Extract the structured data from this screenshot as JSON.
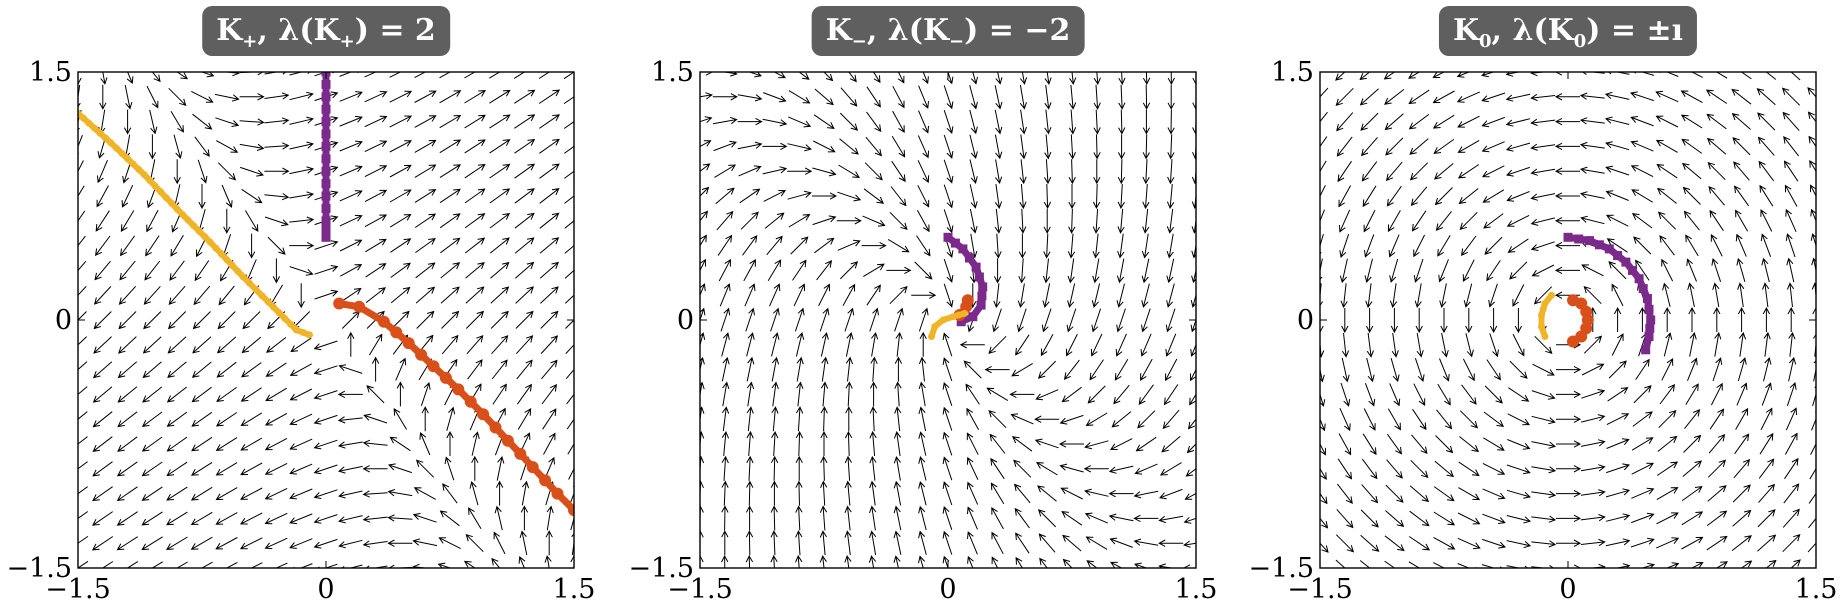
{
  "chart_data": [
    {
      "type": "scatter",
      "plot_kind": "vector field with trajectories (quiver)",
      "title": "K+, λ(K+) = 2",
      "title_parts": {
        "sym": "K",
        "sub": "+",
        "mid": ", λ(",
        "sym2": "K",
        "sub2": "+",
        "tail": ") = 2"
      },
      "xlim": [
        -1.5,
        1.5
      ],
      "ylim": [
        -1.5,
        1.5
      ],
      "x_ticks": [
        "−1.5",
        "0",
        "1.5"
      ],
      "y_ticks": [
        "−1.5",
        "0",
        "1.5"
      ],
      "grid": false,
      "field_matrix": [
        [
          1.5,
          1.5
        ],
        [
          1.5,
          0.5
        ]
      ],
      "series": [
        {
          "color": "#f0b429",
          "marker": "small-dot",
          "points": [
            [
              -1.5,
              1.25
            ],
            [
              -1.3,
              1.07
            ],
            [
              -1.1,
              0.88
            ],
            [
              -0.9,
              0.67
            ],
            [
              -0.7,
              0.47
            ],
            [
              -0.5,
              0.26
            ],
            [
              -0.35,
              0.11
            ],
            [
              -0.25,
              0.01
            ],
            [
              -0.18,
              -0.06
            ],
            [
              -0.1,
              -0.09
            ]
          ]
        },
        {
          "color": "#d94f1a",
          "marker": "large-dot",
          "points": [
            [
              0.08,
              0.1
            ],
            [
              0.2,
              0.08
            ],
            [
              0.35,
              -0.01
            ],
            [
              0.5,
              -0.14
            ],
            [
              0.65,
              -0.28
            ],
            [
              0.8,
              -0.42
            ],
            [
              0.95,
              -0.57
            ],
            [
              1.1,
              -0.73
            ],
            [
              1.25,
              -0.89
            ],
            [
              1.4,
              -1.05
            ],
            [
              1.5,
              -1.15
            ]
          ]
        },
        {
          "color": "#7b2a8c",
          "marker": "square",
          "points": [
            [
              0,
              1.5
            ],
            [
              0,
              1.35
            ],
            [
              0,
              1.2
            ],
            [
              0,
              1.05
            ],
            [
              0,
              0.9
            ],
            [
              0,
              0.75
            ],
            [
              0,
              0.6
            ],
            [
              0,
              0.5
            ]
          ]
        }
      ]
    },
    {
      "type": "scatter",
      "plot_kind": "vector field with trajectories (quiver)",
      "title": "K−, λ(K−) = −2",
      "title_parts": {
        "sym": "K",
        "sub": "−",
        "mid": ", λ(",
        "sym2": "K",
        "sub2": "−",
        "tail": ") = −2"
      },
      "xlim": [
        -1.5,
        1.5
      ],
      "ylim": [
        -1.5,
        1.5
      ],
      "x_ticks": [
        "−1.5",
        "0",
        "1.5"
      ],
      "y_ticks": [
        "−1.5",
        "0",
        "1.5"
      ],
      "grid": false,
      "field_matrix": [
        [
          -0.5,
          0.5
        ],
        [
          -1.5,
          -1.5
        ]
      ],
      "series": [
        {
          "color": "#7b2a8c",
          "marker": "square",
          "points": [
            [
              0,
              0.5
            ],
            [
              0.09,
              0.43
            ],
            [
              0.17,
              0.32
            ],
            [
              0.21,
              0.2
            ],
            [
              0.2,
              0.09
            ],
            [
              0.15,
              0.02
            ],
            [
              0.08,
              -0.01
            ]
          ]
        },
        {
          "color": "#d94f1a",
          "marker": "large-dot",
          "points": [
            [
              0.07,
              0.03
            ],
            [
              0.11,
              0.08
            ],
            [
              0.12,
              0.12
            ]
          ]
        },
        {
          "color": "#f0b429",
          "marker": "small-dot",
          "points": [
            [
              -0.1,
              -0.1
            ],
            [
              -0.08,
              -0.04
            ],
            [
              -0.03,
              0.0
            ],
            [
              0.03,
              0.02
            ],
            [
              0.1,
              0.04
            ]
          ]
        }
      ]
    },
    {
      "type": "scatter",
      "plot_kind": "vector field with trajectories (quiver)",
      "title": "K0, λ(K0) = ±ı",
      "title_parts": {
        "sym": "K",
        "sub": "0",
        "mid": ", λ(",
        "sym2": "K",
        "sub2": "0",
        "tail": ") = ±ı"
      },
      "xlim": [
        -1.5,
        1.5
      ],
      "ylim": [
        -1.5,
        1.5
      ],
      "x_ticks": [
        "−1.5",
        "0",
        "1.5"
      ],
      "y_ticks": [
        "−1.5",
        "0",
        "1.5"
      ],
      "grid": false,
      "field_matrix": [
        [
          0,
          -1
        ],
        [
          1,
          0
        ]
      ],
      "series": [
        {
          "color": "#7b2a8c",
          "marker": "square",
          "points": [
            [
              0,
              0.5
            ],
            [
              0.13,
              0.48
            ],
            [
              0.25,
              0.43
            ],
            [
              0.35,
              0.35
            ],
            [
              0.43,
              0.25
            ],
            [
              0.48,
              0.13
            ],
            [
              0.5,
              0.0
            ],
            [
              0.49,
              -0.1
            ],
            [
              0.47,
              -0.18
            ]
          ]
        },
        {
          "color": "#d94f1a",
          "marker": "large-dot",
          "points": [
            [
              0.03,
              0.12
            ],
            [
              0.08,
              0.1
            ],
            [
              0.11,
              0.05
            ],
            [
              0.12,
              0.0
            ],
            [
              0.11,
              -0.05
            ],
            [
              0.08,
              -0.1
            ],
            [
              0.03,
              -0.13
            ]
          ]
        },
        {
          "color": "#f0b429",
          "marker": "small-dot",
          "points": [
            [
              -0.1,
              0.15
            ],
            [
              -0.14,
              0.1
            ],
            [
              -0.16,
              0.03
            ],
            [
              -0.16,
              -0.04
            ],
            [
              -0.14,
              -0.1
            ]
          ]
        }
      ]
    }
  ]
}
